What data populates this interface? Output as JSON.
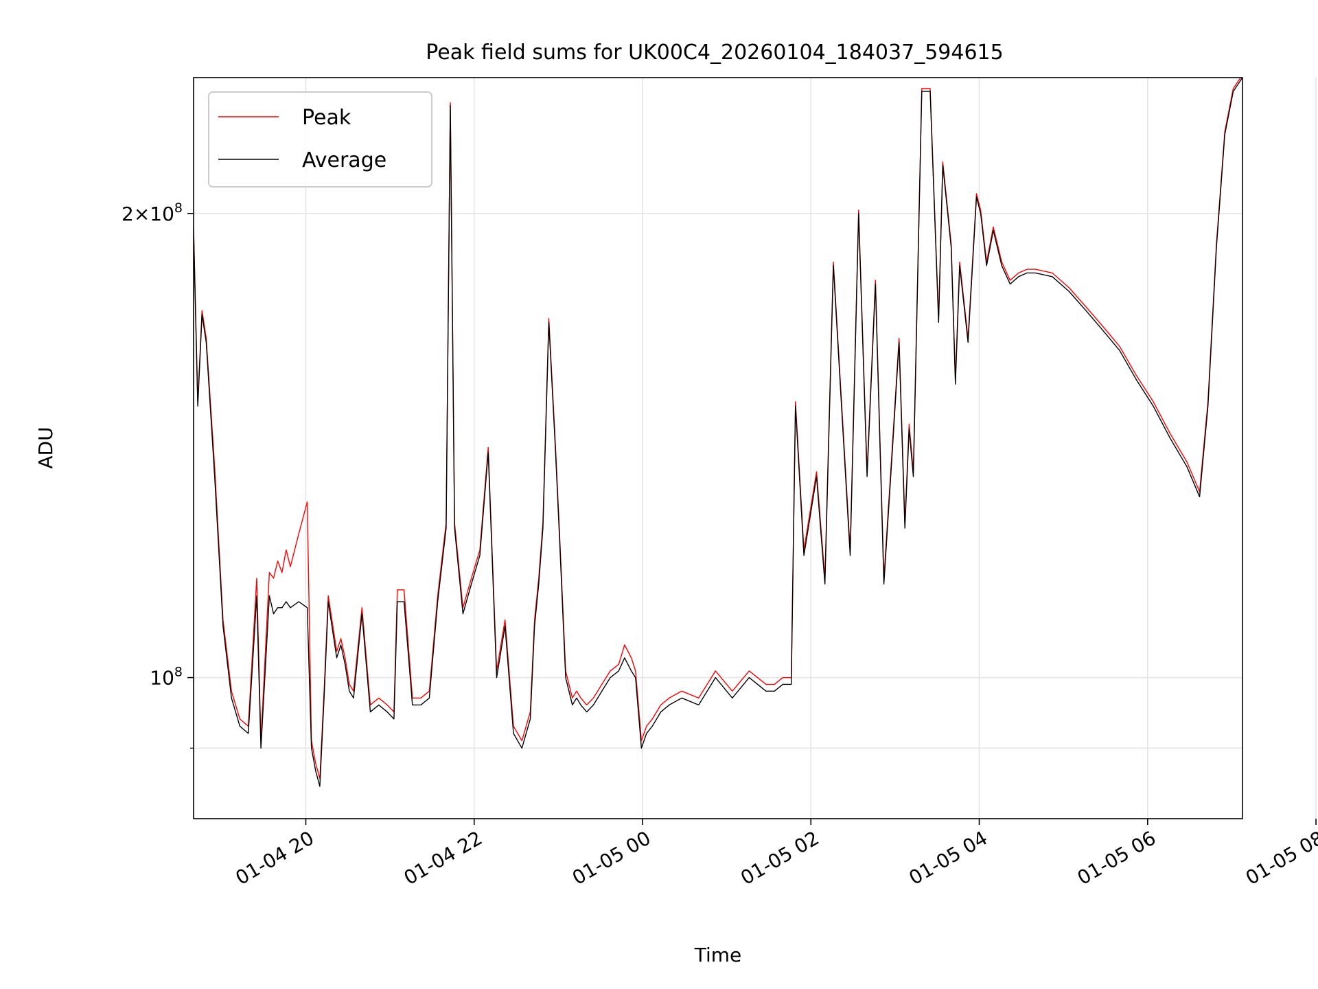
{
  "chart_data": {
    "type": "line",
    "title": "Peak field sums for UK00C4_20260104_184037_594615",
    "xlabel": "Time",
    "ylabel": "ADU",
    "y_scale": "log",
    "ylim": [
      81000000,
      245000000
    ],
    "x_units": "hours since 01-04 18:40",
    "xlim": [
      0,
      12.46
    ],
    "x_ticks": [
      {
        "value": 1.333,
        "label": "01-04 20"
      },
      {
        "value": 3.333,
        "label": "01-04 22"
      },
      {
        "value": 5.333,
        "label": "01-05 00"
      },
      {
        "value": 7.333,
        "label": "01-05 02"
      },
      {
        "value": 9.333,
        "label": "01-05 04"
      },
      {
        "value": 11.333,
        "label": "01-05 06"
      },
      {
        "value": 13.333,
        "label": "01-05 08"
      }
    ],
    "y_ticks_major": [
      {
        "value": 100000000,
        "base": "10",
        "exp": "8",
        "coef": ""
      },
      {
        "value": 200000000,
        "base": "10",
        "exp": "8",
        "coef": "2×"
      }
    ],
    "y_ticks_minor": [
      90000000
    ],
    "grid": true,
    "legend": {
      "position": "top-left",
      "entries": [
        "Peak",
        "Average"
      ]
    },
    "colors": {
      "peak": "#ff0000",
      "average": "#000000",
      "grid": "#e5e5e5"
    },
    "series": [
      {
        "name": "Average",
        "x": [
          0.0,
          0.05,
          0.1,
          0.15,
          0.25,
          0.35,
          0.45,
          0.55,
          0.65,
          0.75,
          0.8,
          0.9,
          0.95,
          1.0,
          1.05,
          1.1,
          1.15,
          1.25,
          1.35,
          1.4,
          1.45,
          1.5,
          1.55,
          1.6,
          1.7,
          1.75,
          1.8,
          1.85,
          1.9,
          2.0,
          2.1,
          2.2,
          2.3,
          2.38,
          2.42,
          2.5,
          2.6,
          2.7,
          2.8,
          2.9,
          3.0,
          3.05,
          3.1,
          3.2,
          3.3,
          3.4,
          3.5,
          3.6,
          3.7,
          3.8,
          3.9,
          4.0,
          4.05,
          4.1,
          4.15,
          4.22,
          4.3,
          4.35,
          4.42,
          4.5,
          4.55,
          4.6,
          4.67,
          4.75,
          4.85,
          4.95,
          5.05,
          5.12,
          5.2,
          5.25,
          5.32,
          5.38,
          5.45,
          5.55,
          5.65,
          5.8,
          6.0,
          6.2,
          6.4,
          6.6,
          6.8,
          6.9,
          7.0,
          7.1,
          7.15,
          7.25,
          7.4,
          7.5,
          7.6,
          7.8,
          7.9,
          8.0,
          8.1,
          8.2,
          8.3,
          8.38,
          8.45,
          8.5,
          8.55,
          8.65,
          8.75,
          8.85,
          8.9,
          9.0,
          9.05,
          9.1,
          9.2,
          9.3,
          9.35,
          9.42,
          9.5,
          9.6,
          9.7,
          9.8,
          9.9,
          10.0,
          10.2,
          10.4,
          10.6,
          10.8,
          11.0,
          11.2,
          11.4,
          11.6,
          11.8,
          11.95,
          12.05,
          12.15,
          12.25,
          12.35,
          12.46
        ],
        "values": [
          195000000.0,
          150000000.0,
          172000000.0,
          165000000.0,
          135000000.0,
          108000000.0,
          97000000.0,
          93000000.0,
          92000000.0,
          113000000.0,
          90000000.0,
          113000000.0,
          110000000.0,
          111000000.0,
          111000000.0,
          112000000.0,
          111000000.0,
          112000000.0,
          111000000.0,
          90000000.0,
          87000000.0,
          85000000.0,
          97000000.0,
          112000000.0,
          103000000.0,
          105000000.0,
          102000000.0,
          98000000.0,
          97000000.0,
          110000000.0,
          95000000.0,
          96000000.0,
          95000000.0,
          94000000.0,
          112000000.0,
          112000000.0,
          96000000.0,
          96000000.0,
          97000000.0,
          112000000.0,
          125000000.0,
          235000000.0,
          125000000.0,
          110000000.0,
          115000000.0,
          120000000.0,
          140000000.0,
          100000000.0,
          108000000.0,
          92000000.0,
          90000000.0,
          94000000.0,
          108000000.0,
          115000000.0,
          125000000.0,
          170000000.0,
          140000000.0,
          122000000.0,
          100000000.0,
          96000000.0,
          97000000.0,
          96000000.0,
          95000000.0,
          96000000.0,
          98000000.0,
          100000000.0,
          101000000.0,
          103000000.0,
          101000000.0,
          100000000.0,
          90000000.0,
          92000000.0,
          93000000.0,
          95000000.0,
          96000000.0,
          97000000.0,
          96000000.0,
          100000000.0,
          97000000.0,
          100000000.0,
          98000000.0,
          98000000.0,
          99000000.0,
          99000000.0,
          150000000.0,
          120000000.0,
          135000000.0,
          115000000.0,
          185000000.0,
          120000000.0,
          200000000.0,
          135000000.0,
          180000000.0,
          115000000.0,
          140000000.0,
          165000000.0,
          125000000.0,
          145000000.0,
          135000000.0,
          240000000.0,
          240000000.0,
          170000000.0,
          215000000.0,
          190000000.0,
          155000000.0,
          185000000.0,
          165000000.0,
          205000000.0,
          200000000.0,
          185000000.0,
          195000000.0,
          185000000.0,
          180000000.0,
          182000000.0,
          183000000.0,
          183000000.0,
          182000000.0,
          178000000.0,
          173000000.0,
          168000000.0,
          163000000.0,
          156000000.0,
          150000000.0,
          143000000.0,
          137000000.0,
          131000000.0,
          150000000.0,
          190000000.0,
          225000000.0,
          240000000.0,
          245000000.0
        ]
      },
      {
        "name": "Peak",
        "x": [
          0.0,
          0.05,
          0.1,
          0.15,
          0.25,
          0.35,
          0.45,
          0.55,
          0.65,
          0.75,
          0.8,
          0.9,
          0.95,
          1.0,
          1.05,
          1.1,
          1.15,
          1.25,
          1.35,
          1.4,
          1.45,
          1.5,
          1.55,
          1.6,
          1.7,
          1.75,
          1.8,
          1.85,
          1.9,
          2.0,
          2.1,
          2.2,
          2.3,
          2.38,
          2.42,
          2.5,
          2.6,
          2.7,
          2.8,
          2.9,
          3.0,
          3.05,
          3.1,
          3.2,
          3.3,
          3.4,
          3.5,
          3.6,
          3.7,
          3.8,
          3.9,
          4.0,
          4.05,
          4.1,
          4.15,
          4.22,
          4.3,
          4.35,
          4.42,
          4.5,
          4.55,
          4.6,
          4.67,
          4.75,
          4.85,
          4.95,
          5.05,
          5.12,
          5.2,
          5.25,
          5.32,
          5.38,
          5.45,
          5.55,
          5.65,
          5.8,
          6.0,
          6.2,
          6.4,
          6.6,
          6.8,
          6.9,
          7.0,
          7.1,
          7.15,
          7.25,
          7.4,
          7.5,
          7.6,
          7.8,
          7.9,
          8.0,
          8.1,
          8.2,
          8.3,
          8.38,
          8.45,
          8.5,
          8.55,
          8.65,
          8.75,
          8.85,
          8.9,
          9.0,
          9.05,
          9.1,
          9.2,
          9.3,
          9.35,
          9.42,
          9.5,
          9.6,
          9.7,
          9.8,
          9.9,
          10.0,
          10.2,
          10.4,
          10.6,
          10.8,
          11.0,
          11.2,
          11.4,
          11.6,
          11.8,
          11.95,
          12.05,
          12.15,
          12.25,
          12.35,
          12.46
        ],
        "values": [
          196000000.0,
          151000000.0,
          173000000.0,
          166000000.0,
          137000000.0,
          109000000.0,
          98000000.0,
          94000000.0,
          93000000.0,
          116000000.0,
          91000000.0,
          117000000.0,
          116000000.0,
          119000000.0,
          117000000.0,
          121000000.0,
          118000000.0,
          124000000.0,
          130000000.0,
          91000000.0,
          88000000.0,
          86000000.0,
          98000000.0,
          113000000.0,
          104000000.0,
          106000000.0,
          103000000.0,
          99000000.0,
          98000000.0,
          111000000.0,
          96000000.0,
          97000000.0,
          96000000.0,
          95000000.0,
          114000000.0,
          114000000.0,
          97000000.0,
          97000000.0,
          98000000.0,
          113000000.0,
          126000000.0,
          236000000.0,
          126000000.0,
          111000000.0,
          116000000.0,
          121000000.0,
          141000000.0,
          101000000.0,
          109000000.0,
          93000000.0,
          91000000.0,
          95000000.0,
          109000000.0,
          116000000.0,
          126000000.0,
          171000000.0,
          141000000.0,
          123000000.0,
          101000000.0,
          97000000.0,
          98000000.0,
          97000000.0,
          96000000.0,
          97000000.0,
          99000000.0,
          101000000.0,
          102000000.0,
          105000000.0,
          103000000.0,
          101000000.0,
          91000000.0,
          93000000.0,
          94000000.0,
          96000000.0,
          97000000.0,
          98000000.0,
          97000000.0,
          101000000.0,
          98000000.0,
          101000000.0,
          99000000.0,
          99000000.0,
          100000000.0,
          100000000.0,
          151000000.0,
          121000000.0,
          136000000.0,
          116000000.0,
          186000000.0,
          121000000.0,
          201000000.0,
          136000000.0,
          181000000.0,
          116000000.0,
          141000000.0,
          166000000.0,
          126000000.0,
          146000000.0,
          136000000.0,
          241000000.0,
          241000000.0,
          171000000.0,
          216000000.0,
          191000000.0,
          156000000.0,
          186000000.0,
          166000000.0,
          206000000.0,
          201000000.0,
          186000000.0,
          196000000.0,
          186000000.0,
          181000000.0,
          183000000.0,
          184000000.0,
          184000000.0,
          183000000.0,
          179000000.0,
          174000000.0,
          169000000.0,
          164000000.0,
          157000000.0,
          151000000.0,
          144000000.0,
          138000000.0,
          132000000.0,
          151000000.0,
          191000000.0,
          226000000.0,
          241000000.0,
          246000000.0
        ]
      }
    ]
  }
}
